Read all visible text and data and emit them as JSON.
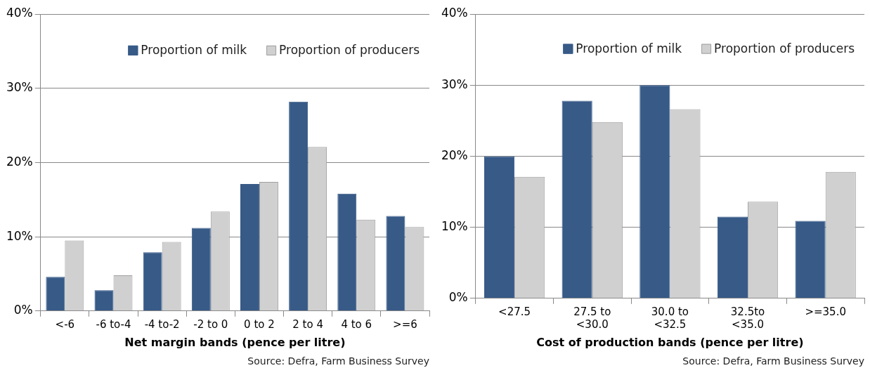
{
  "chart_data": [
    {
      "type": "bar",
      "xlabel": "Net margin bands (pence per litre)",
      "categories": [
        "<-6",
        "-6 to-4",
        "-4 to-2",
        "-2 to 0",
        "0 to 2",
        "2 to 4",
        "4 to 6",
        ">=6"
      ],
      "series": [
        {
          "name": "Proportion of milk",
          "color": "#375a87",
          "values": [
            4.6,
            2.8,
            7.9,
            11.2,
            17.1,
            28.2,
            15.8,
            12.8
          ]
        },
        {
          "name": "Proportion of producers",
          "color": "#d0d0d0",
          "values": [
            9.5,
            4.8,
            9.3,
            13.4,
            17.4,
            22.1,
            12.3,
            11.3
          ]
        }
      ],
      "ylim": [
        0,
        40
      ],
      "yticks": [
        {
          "value": 0,
          "label": "0%"
        },
        {
          "value": 10,
          "label": "10%"
        },
        {
          "value": 20,
          "label": "20%"
        },
        {
          "value": 30,
          "label": "30%"
        },
        {
          "value": 40,
          "label": "40%"
        }
      ],
      "grid": "y",
      "legend": "top",
      "annotations": [
        "Source: Defra, Farm Business Survey"
      ]
    },
    {
      "type": "bar",
      "xlabel": "Cost of production bands (pence per litre)",
      "categories": [
        "<27.5",
        "27.5 to <30.0",
        "30.0 to <32.5",
        "32.5to <35.0",
        ">=35.0"
      ],
      "series": [
        {
          "name": "Proportion of milk",
          "color": "#375a87",
          "values": [
            20.0,
            27.8,
            30.0,
            11.5,
            10.9
          ]
        },
        {
          "name": "Proportion of producers",
          "color": "#d0d0d0",
          "values": [
            17.1,
            24.8,
            26.6,
            13.6,
            17.8
          ]
        }
      ],
      "ylim": [
        0,
        40
      ],
      "yticks": [
        {
          "value": 0,
          "label": "0%"
        },
        {
          "value": 10,
          "label": "10%"
        },
        {
          "value": 20,
          "label": "20%"
        },
        {
          "value": 30,
          "label": "30%"
        },
        {
          "value": 40,
          "label": "40%"
        }
      ],
      "grid": "y",
      "legend": "top",
      "annotations": [
        "Source: Defra, Farm Business Survey"
      ]
    }
  ]
}
